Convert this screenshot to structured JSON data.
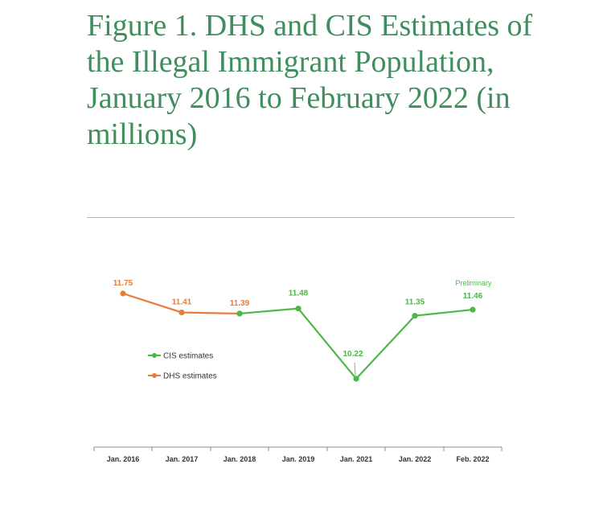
{
  "title": "Figure 1. DHS and CIS Estimates of the Illegal Immigrant Population, January 2016 to February 2022 (in millions)",
  "colors": {
    "title": "#3f8f5e",
    "cis": "#4cb848",
    "dhs": "#e87b35"
  },
  "chart_data": {
    "type": "line",
    "categories": [
      "Jan. 2016",
      "Jan. 2017",
      "Jan. 2018",
      "Jan. 2019",
      "Jan. 2021",
      "Jan. 2022",
      "Feb. 2022"
    ],
    "series": [
      {
        "name": "DHS estimates",
        "color": "#e87b35",
        "values": [
          11.75,
          11.41,
          11.39,
          null,
          null,
          null,
          null
        ],
        "labels": [
          "11.75",
          "11.41",
          "11.39",
          null,
          null,
          null,
          null
        ]
      },
      {
        "name": "CIS estimates",
        "color": "#4cb848",
        "values": [
          null,
          null,
          11.39,
          11.48,
          10.22,
          11.35,
          11.46
        ],
        "labels": [
          null,
          null,
          null,
          "11.48",
          "10.22",
          "11.35",
          "11.46"
        ]
      }
    ],
    "annotation": "Preliminary",
    "ylim": [
      9.4,
      11.9
    ],
    "grid": false,
    "legend": "left-center"
  }
}
